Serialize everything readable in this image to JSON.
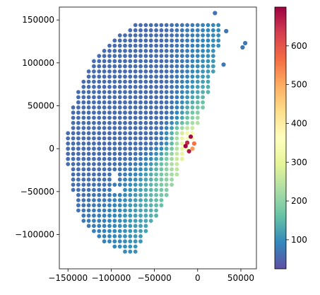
{
  "chart_data": {
    "type": "scatter",
    "title": "",
    "xlabel": "",
    "ylabel": "",
    "xlim": [
      -160000,
      68000
    ],
    "ylim": [
      -140000,
      165000
    ],
    "x_ticks": [
      {
        "value": -150000,
        "label": "−150000"
      },
      {
        "value": -100000,
        "label": "−100000"
      },
      {
        "value": -50000,
        "label": "−50000"
      },
      {
        "value": 0,
        "label": "0"
      },
      {
        "value": 50000,
        "label": "50000"
      }
    ],
    "y_ticks": [
      {
        "value": -100000,
        "label": "−100000"
      },
      {
        "value": -50000,
        "label": "−50000"
      },
      {
        "value": 0,
        "label": "0"
      },
      {
        "value": 50000,
        "label": "50000"
      },
      {
        "value": 100000,
        "label": "100000"
      },
      {
        "value": 150000,
        "label": "150000"
      }
    ],
    "grid": false,
    "colormap": "Spectral_r",
    "colorbar": {
      "range": [
        25,
        700
      ],
      "ticks": [
        {
          "value": 100,
          "label": "100"
        },
        {
          "value": 200,
          "label": "200"
        },
        {
          "value": 300,
          "label": "300"
        },
        {
          "value": 400,
          "label": "400"
        },
        {
          "value": 500,
          "label": "500"
        },
        {
          "value": 600,
          "label": "600"
        }
      ]
    },
    "grid_spacing": 6000,
    "domain": {
      "apex": [
        30000,
        150000
      ],
      "left_start": [
        -60000,
        150000
      ],
      "left_control": [
        -150000,
        110000
      ],
      "left_end": [
        -152000,
        -8000
      ],
      "right_end": [
        -75000,
        -125000
      ],
      "holes": [
        [
          -96000,
          -32000
        ],
        [
          -94000,
          -48000
        ]
      ]
    },
    "value_field": {
      "background": 60,
      "peak_center": [
        -8000,
        10000
      ],
      "peak_amplitude": 310,
      "plume_direction": [
        -0.28,
        -0.96
      ],
      "plume_along_scale": 75000,
      "plume_cross_scale": 9000,
      "upper_direction": [
        0.55,
        0.84
      ],
      "upper_along_scale": 45000,
      "upper_cross_scale": 11000
    },
    "hot_points": [
      {
        "x": -8000,
        "y": 14000,
        "value": 690
      },
      {
        "x": -12000,
        "y": 7000,
        "value": 660
      },
      {
        "x": -14000,
        "y": 3000,
        "value": 700
      },
      {
        "x": -10000,
        "y": -3000,
        "value": 680
      },
      {
        "x": -4000,
        "y": 6000,
        "value": 560
      },
      {
        "x": -6000,
        "y": 0,
        "value": 520
      }
    ],
    "outliers": [
      {
        "x": 30000,
        "y": 98000,
        "value": 75
      },
      {
        "x": 52000,
        "y": 118000,
        "value": 70
      },
      {
        "x": 55000,
        "y": 123000,
        "value": 72
      },
      {
        "x": 20000,
        "y": 158000,
        "value": 65
      },
      {
        "x": 33000,
        "y": 137000,
        "value": 68
      }
    ]
  }
}
